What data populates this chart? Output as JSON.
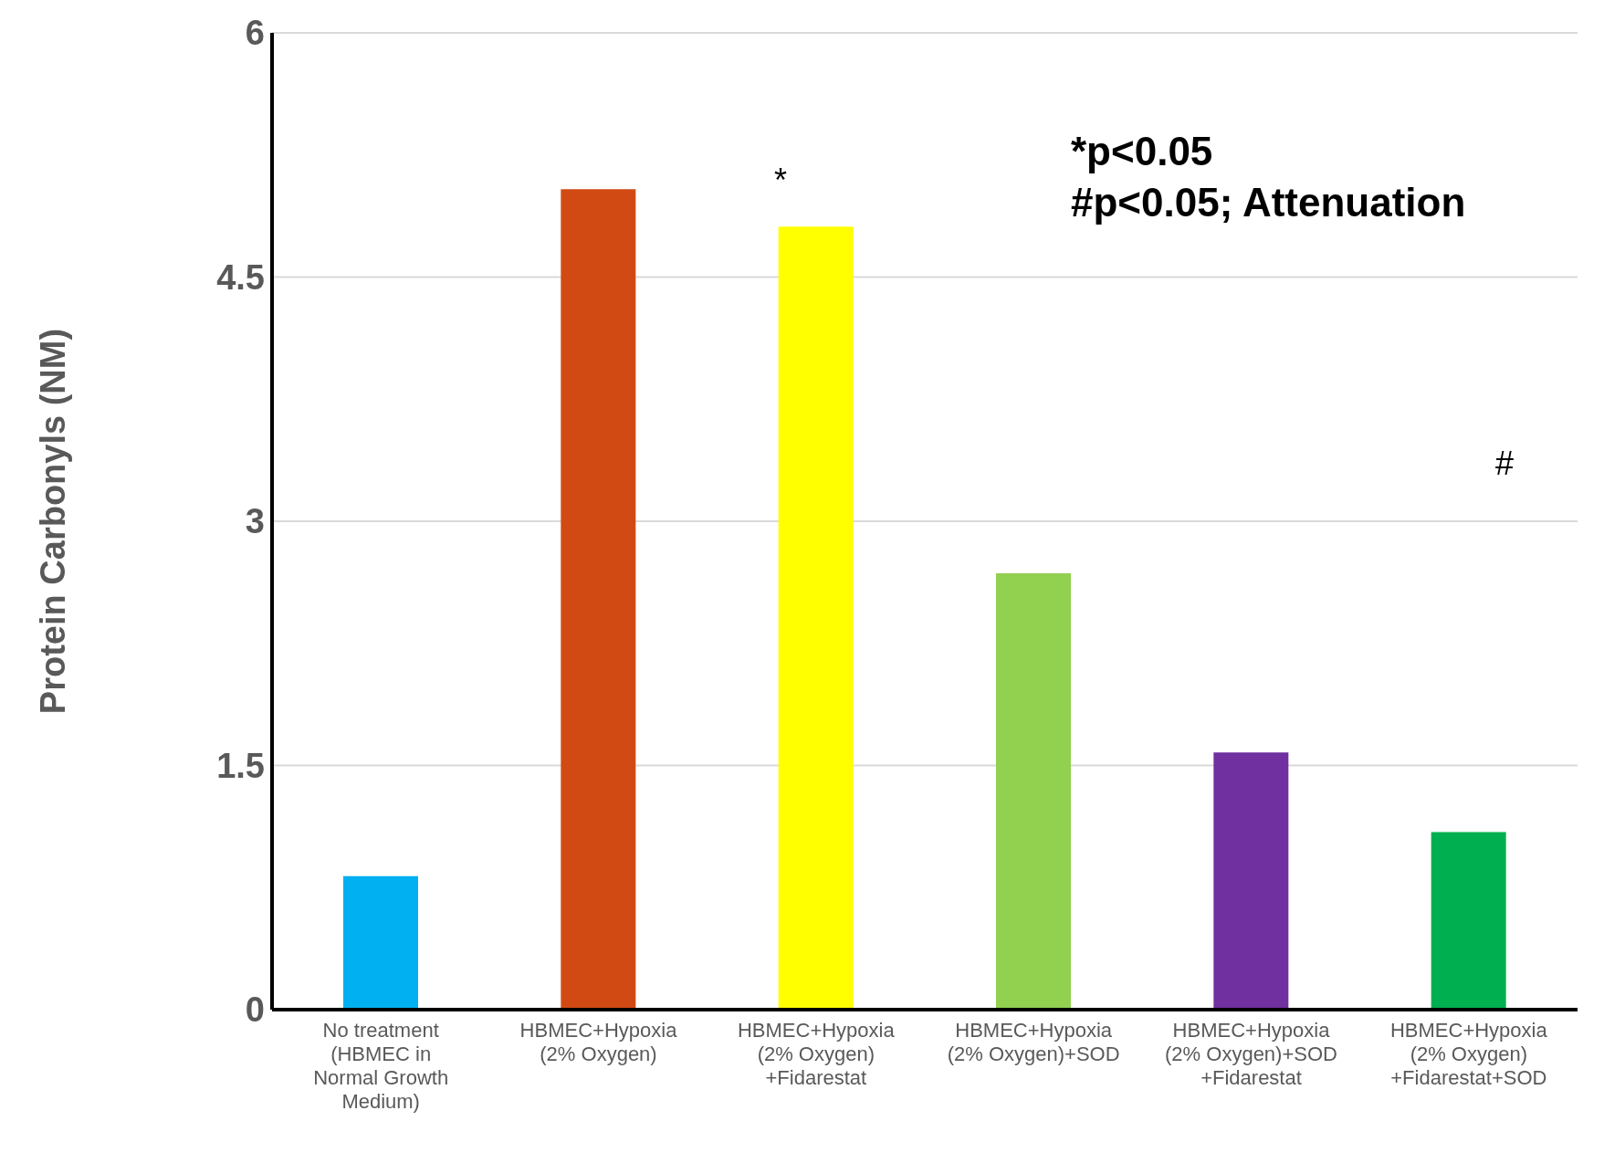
{
  "chart_data": {
    "type": "bar",
    "ylabel": "Protein Carbonyls (NM)",
    "categories": [
      "No treatment (HBMEC in Normal Growth Medium)",
      "HBMEC+Hypoxia (2% Oxygen)",
      "HBMEC+Hypoxia (2% Oxygen)+Fidarestat",
      "HBMEC+Hypoxia (2% Oxygen)+SOD",
      "HBMEC+Hypoxia (2% Oxygen)+SOD+Fidarestat",
      "HBMEC+Hypoxia (2% Oxygen)+Fidarestat+SOD"
    ],
    "values": [
      0.82,
      5.04,
      4.81,
      2.68,
      1.58,
      1.09
    ],
    "colors": [
      "#00b0f0",
      "#d14a14",
      "#ffff00",
      "#92d050",
      "#7030a0",
      "#00b050"
    ],
    "ylim": [
      0,
      6
    ],
    "yticks": [
      0,
      1.5,
      3,
      4.5,
      6
    ],
    "grid": "y",
    "annotations": [
      "*p<0.05",
      "#p<0.05; Attenuation",
      "*",
      "#"
    ]
  }
}
